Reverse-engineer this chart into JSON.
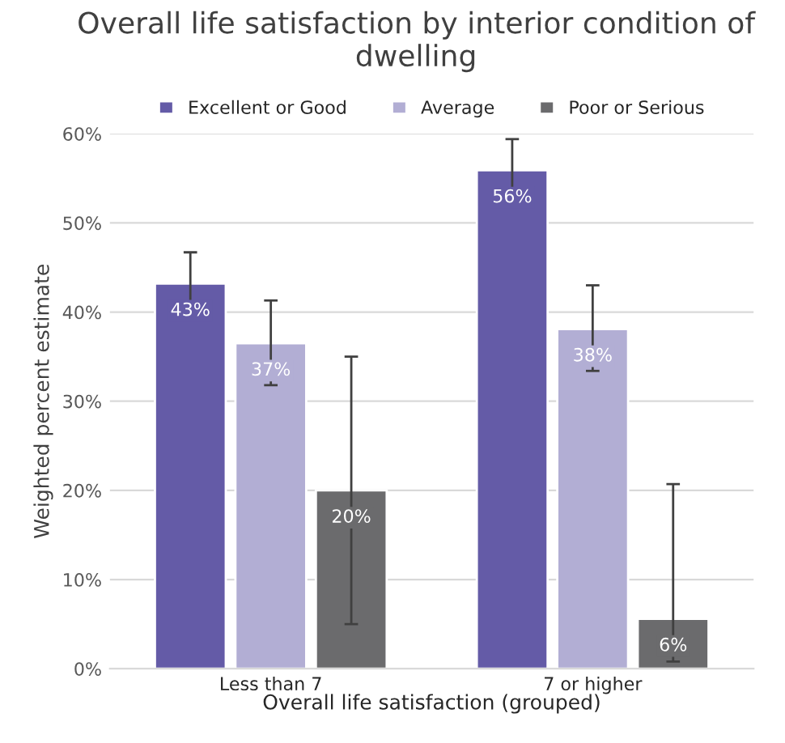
{
  "chart_data": {
    "type": "bar",
    "title": "Overall life satisfaction by interior condition of dwelling",
    "xlabel": "Overall life satisfaction (grouped)",
    "ylabel": "Weighted percent estimate",
    "categories": [
      "Less than 7",
      "7 or higher"
    ],
    "series": [
      {
        "name": "Excellent or Good",
        "color": "#645ba7",
        "values": [
          43.2,
          55.9
        ],
        "errors": [
          [
            39.7,
            46.7
          ],
          [
            52.4,
            59.4
          ]
        ],
        "value_labels": [
          "43%",
          "56%"
        ]
      },
      {
        "name": "Average",
        "color": "#b2aed4",
        "values": [
          36.5,
          38.1
        ],
        "errors": [
          [
            31.8,
            41.3
          ],
          [
            33.4,
            43.0
          ]
        ],
        "value_labels": [
          "37%",
          "38%"
        ]
      },
      {
        "name": "Poor or Serious",
        "color": "#6b6b6d",
        "values": [
          20.0,
          5.6
        ],
        "errors": [
          [
            5.0,
            35.0
          ],
          [
            0.8,
            20.7
          ]
        ],
        "value_labels": [
          "20%",
          "6%"
        ]
      }
    ],
    "ylim": [
      0,
      60
    ],
    "yticks": [
      {
        "value": 0,
        "label": "0%"
      },
      {
        "value": 10,
        "label": "10%"
      },
      {
        "value": 20,
        "label": "20%"
      },
      {
        "value": 30,
        "label": "30%"
      },
      {
        "value": 40,
        "label": "40%"
      },
      {
        "value": 50,
        "label": "50%"
      },
      {
        "value": 60,
        "label": "60%"
      }
    ],
    "grid": "y",
    "legend": "top"
  }
}
